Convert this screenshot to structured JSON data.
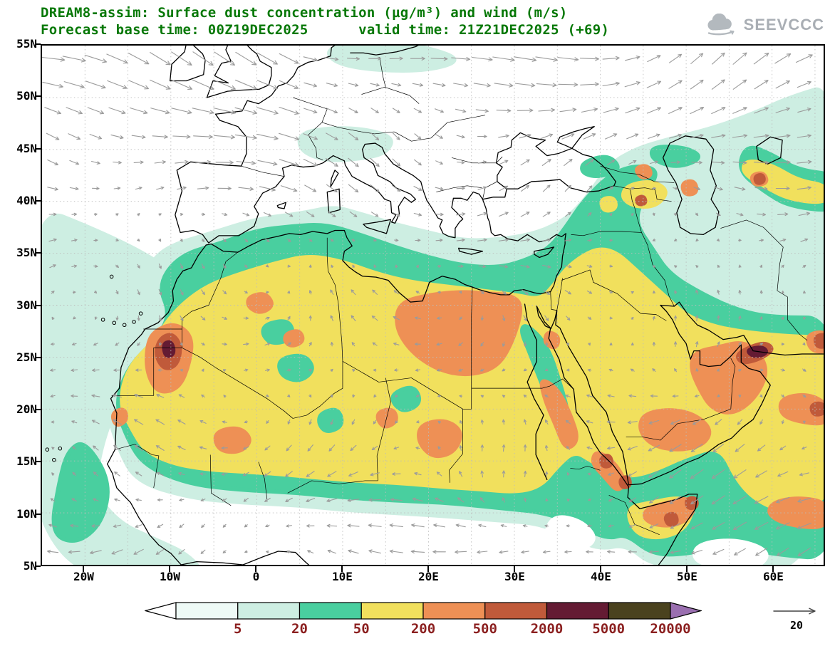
{
  "header": {
    "title_line1": "DREAM8-assim: Surface dust concentration (µg/m³) and wind (m/s)",
    "title_line2": "Forecast base time: 00Z19DEC2025      valid time: 21Z21DEC2025 (+69)",
    "logo_text": "SEEVCCC"
  },
  "map": {
    "lat_ticks": [
      "55N",
      "50N",
      "45N",
      "40N",
      "35N",
      "30N",
      "25N",
      "20N",
      "15N",
      "10N",
      "5N"
    ],
    "lat_values": [
      55,
      50,
      45,
      40,
      35,
      30,
      25,
      20,
      15,
      10,
      5
    ],
    "lon_ticks": [
      "20W",
      "10W",
      "0",
      "10E",
      "20E",
      "30E",
      "40E",
      "50E",
      "60E"
    ],
    "lon_values": [
      -20,
      -10,
      0,
      10,
      20,
      30,
      40,
      50,
      60
    ]
  },
  "colorbar": {
    "labels": [
      "5",
      "20",
      "50",
      "200",
      "500",
      "2000",
      "5000",
      "20000"
    ],
    "segment_colors": [
      "#eefaf6",
      "#cdeee2",
      "#49cf9f",
      "#f1e05d",
      "#ee9055",
      "#c05a3a",
      "#641b33",
      "#4a421e"
    ],
    "below_min_color": "#ffffff",
    "above_max_color": "#9a6fb0",
    "label_color": "#8b1f1f"
  },
  "wind_legend": {
    "value": "20"
  },
  "chart_data": {
    "type": "heatmap",
    "subtype": "filled_contour_map_with_wind_vectors",
    "title": "DREAM8-assim: Surface dust concentration (µg/m³) and wind (m/s)",
    "model": "DREAM8-assim",
    "variable": "Surface dust concentration",
    "units": "µg/m³",
    "wind_units": "m/s",
    "forecast_base_time": "00Z19DEC2025",
    "valid_time": "21Z21DEC2025",
    "forecast_lead_hours": 69,
    "wind_reference_vector_m_s": 20,
    "lat_axis": {
      "ticks": [
        "55N",
        "50N",
        "45N",
        "40N",
        "35N",
        "30N",
        "25N",
        "20N",
        "15N",
        "10N",
        "5N"
      ],
      "range_deg": [
        5,
        55
      ]
    },
    "lon_axis": {
      "ticks": [
        "20W",
        "10W",
        "0",
        "10E",
        "20E",
        "30E",
        "40E",
        "50E",
        "60E"
      ],
      "range_deg": [
        -25,
        66
      ]
    },
    "contour_levels": [
      5,
      20,
      50,
      200,
      500,
      2000,
      5000,
      20000
    ],
    "bin_colors": [
      "#ffffff",
      "#cdeee2",
      "#49cf9f",
      "#f1e05d",
      "#ee9055",
      "#c05a3a",
      "#641b33",
      "#4a421e",
      "#9a6fb0"
    ],
    "graticule_deg": 5,
    "legend_position": "bottom",
    "field_summary": [
      {
        "region": "Sahara from Mauritania to Egypt and most of the Arabian Peninsula",
        "value_range_ug_m3": "50-200"
      },
      {
        "region": "Green fringe: Atlas, Sahel band, African Mediterranean coast, Horn of Africa, Caucasus patches",
        "value_range_ug_m3": "20-50"
      },
      {
        "region": "Cyan halo: E Atlantic off W Africa, S Mediterranean, Levant, Black Sea/Caspian area, NW Arabian Sea",
        "value_range_ug_m3": "5-20"
      },
      {
        "region": "W Sahara / S Morocco plume (~10W, 25N)",
        "value_range_ug_m3": "500-5000 peak"
      },
      {
        "region": "E Libya - W Egypt blob (~15-30E, 23-31N)",
        "value_range_ug_m3": "200-500"
      },
      {
        "region": "N Sudan blob (~19-24E, 15-19N)",
        "value_range_ug_m3": "200-500"
      },
      {
        "region": "Mali blob (~5W-0, 16-18N)",
        "value_range_ug_m3": "200-500"
      },
      {
        "region": "S and E Arabia, Gulf of Oman coast",
        "value_range_ug_m3": "200-2000, locally 2000-5000"
      },
      {
        "region": "N Somalia and Gulf of Aden",
        "value_range_ug_m3": "200-2000"
      },
      {
        "region": "Red Sea coasts of Sudan/Eritrea",
        "value_range_ug_m3": "200-2000"
      },
      {
        "region": "Transcaucasus and east of Caspian patches",
        "value_range_ug_m3": "50-500"
      }
    ],
    "wind_summary": [
      {
        "region": "NE Atlantic / W Europe (top-left)",
        "flow": "strong WNW to ESE flow, up to about 20 m/s"
      },
      {
        "region": "Sahara interior",
        "flow": "light, variable, mostly NE trade winds"
      },
      {
        "region": "Arabian Sea (bottom-right)",
        "flow": "moderate NE monsoon flow toward SW"
      }
    ]
  }
}
